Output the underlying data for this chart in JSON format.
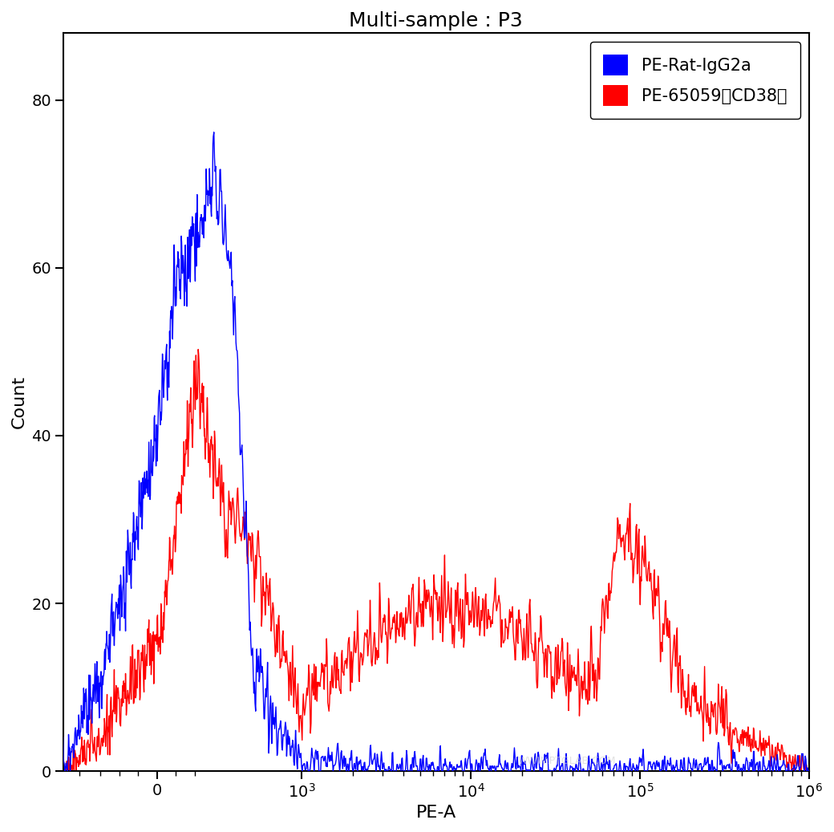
{
  "title": "Multi-sample : P3",
  "xlabel": "PE-A",
  "ylabel": "Count",
  "ylim": [
    0,
    88
  ],
  "yticks": [
    0,
    20,
    40,
    60,
    80
  ],
  "blue_color": "#0000FF",
  "red_color": "#FF0000",
  "legend_label_blue": "PE-Rat-IgG2a",
  "legend_label_red": "PE-65059（CD38）",
  "background_color": "#FFFFFF",
  "title_fontsize": 18,
  "axis_fontsize": 16,
  "tick_fontsize": 14,
  "legend_fontsize": 15,
  "linthresh": 300,
  "linscale": 0.3
}
